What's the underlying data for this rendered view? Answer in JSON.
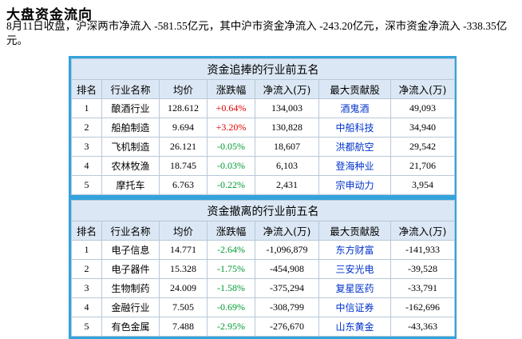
{
  "heading": "大盘资金流向",
  "summary": "8月11日收盘，沪深两市净流入 -581.55亿元，其中沪市资金净流入 -243.20亿元，深市资金净流入 -338.35亿元。",
  "columns": [
    "排名",
    "行业名称",
    "均价",
    "涨跌幅",
    "净流入(万)",
    "最大贡献股",
    "净流入(万)"
  ],
  "colors": {
    "border": "#33a3dc",
    "header_bg": "#dbe7f4",
    "up": "#e00000",
    "down": "#009933",
    "link": "#0033cc"
  },
  "tables": [
    {
      "title": "资金追捧的行业前五名",
      "rows": [
        {
          "rank": "1",
          "industry": "酿酒行业",
          "avg_price": "128.612",
          "change": "+0.64%",
          "direction": "up",
          "net_inflow": "134,003",
          "top_stock": "酒鬼酒",
          "stock_inflow": "49,093"
        },
        {
          "rank": "2",
          "industry": "船舶制造",
          "avg_price": "9.694",
          "change": "+3.20%",
          "direction": "up",
          "net_inflow": "130,828",
          "top_stock": "中船科技",
          "stock_inflow": "34,940"
        },
        {
          "rank": "3",
          "industry": "飞机制造",
          "avg_price": "26.121",
          "change": "-0.05%",
          "direction": "down",
          "net_inflow": "18,607",
          "top_stock": "洪都航空",
          "stock_inflow": "29,542"
        },
        {
          "rank": "4",
          "industry": "农林牧渔",
          "avg_price": "18.745",
          "change": "-0.03%",
          "direction": "down",
          "net_inflow": "6,103",
          "top_stock": "登海种业",
          "stock_inflow": "21,706"
        },
        {
          "rank": "5",
          "industry": "摩托车",
          "avg_price": "6.763",
          "change": "-0.22%",
          "direction": "down",
          "net_inflow": "2,431",
          "top_stock": "宗申动力",
          "stock_inflow": "3,954"
        }
      ]
    },
    {
      "title": "资金撤离的行业前五名",
      "rows": [
        {
          "rank": "1",
          "industry": "电子信息",
          "avg_price": "14.771",
          "change": "-2.64%",
          "direction": "down",
          "net_inflow": "-1,096,879",
          "top_stock": "东方财富",
          "stock_inflow": "-141,933"
        },
        {
          "rank": "2",
          "industry": "电子器件",
          "avg_price": "15.328",
          "change": "-1.75%",
          "direction": "down",
          "net_inflow": "-454,908",
          "top_stock": "三安光电",
          "stock_inflow": "-39,528"
        },
        {
          "rank": "3",
          "industry": "生物制药",
          "avg_price": "24.009",
          "change": "-1.58%",
          "direction": "down",
          "net_inflow": "-375,294",
          "top_stock": "复星医药",
          "stock_inflow": "-33,791"
        },
        {
          "rank": "4",
          "industry": "金融行业",
          "avg_price": "7.505",
          "change": "-0.69%",
          "direction": "down",
          "net_inflow": "-308,799",
          "top_stock": "中信证券",
          "stock_inflow": "-162,696"
        },
        {
          "rank": "5",
          "industry": "有色金属",
          "avg_price": "7.488",
          "change": "-2.95%",
          "direction": "down",
          "net_inflow": "-276,670",
          "top_stock": "山东黄金",
          "stock_inflow": "-43,363"
        }
      ]
    }
  ]
}
